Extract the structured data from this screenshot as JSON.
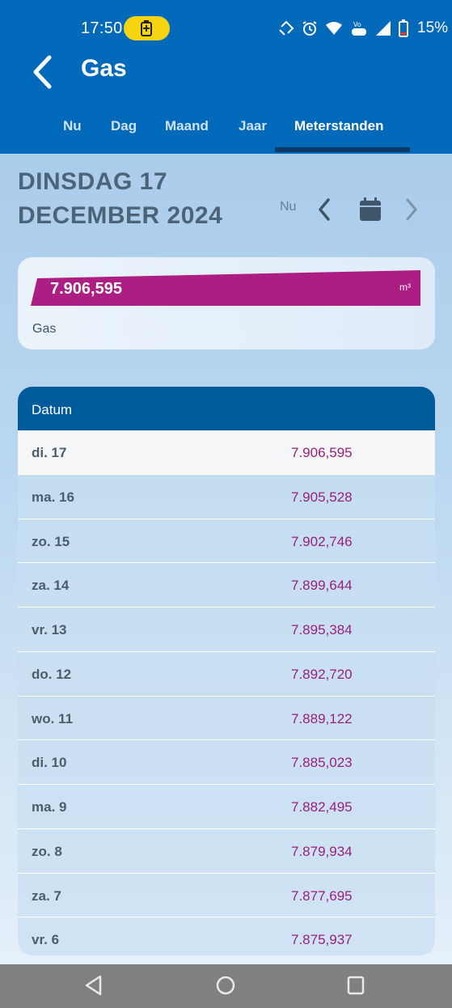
{
  "status_bar": {
    "time": "17:50",
    "battery_percent": "15%"
  },
  "app_bar": {
    "title": "Gas"
  },
  "tabs": [
    {
      "label": "Nu",
      "active": false
    },
    {
      "label": "Dag",
      "active": false
    },
    {
      "label": "Maand",
      "active": false
    },
    {
      "label": "Jaar",
      "active": false
    },
    {
      "label": "Meterstanden",
      "active": true
    }
  ],
  "date_heading": {
    "line1": "DINSDAG 17",
    "line2": "DECEMBER 2024",
    "now_label": "Nu"
  },
  "meter": {
    "value": "7.906,595",
    "unit": "m³",
    "label": "Gas",
    "bar_color": "#ad1e84"
  },
  "table": {
    "header": "Datum",
    "rows": [
      {
        "date": "di. 17",
        "value": "7.906,595"
      },
      {
        "date": "ma. 16",
        "value": "7.905,528"
      },
      {
        "date": "zo. 15",
        "value": "7.902,746"
      },
      {
        "date": "za. 14",
        "value": "7.899,644"
      },
      {
        "date": "vr. 13",
        "value": "7.895,384"
      },
      {
        "date": "do. 12",
        "value": "7.892,720"
      },
      {
        "date": "wo. 11",
        "value": "7.889,122"
      },
      {
        "date": "di. 10",
        "value": "7.885,023"
      },
      {
        "date": "ma. 9",
        "value": "7.882,495"
      },
      {
        "date": "zo. 8",
        "value": "7.879,934"
      },
      {
        "date": "za. 7",
        "value": "7.877,695"
      },
      {
        "date": "vr. 6",
        "value": "7.875,937"
      }
    ]
  },
  "colors": {
    "primary": "#0069b9",
    "table_header": "#005b9d",
    "value_text": "#9a1f7f",
    "battery_saver": "#f6d40f"
  }
}
